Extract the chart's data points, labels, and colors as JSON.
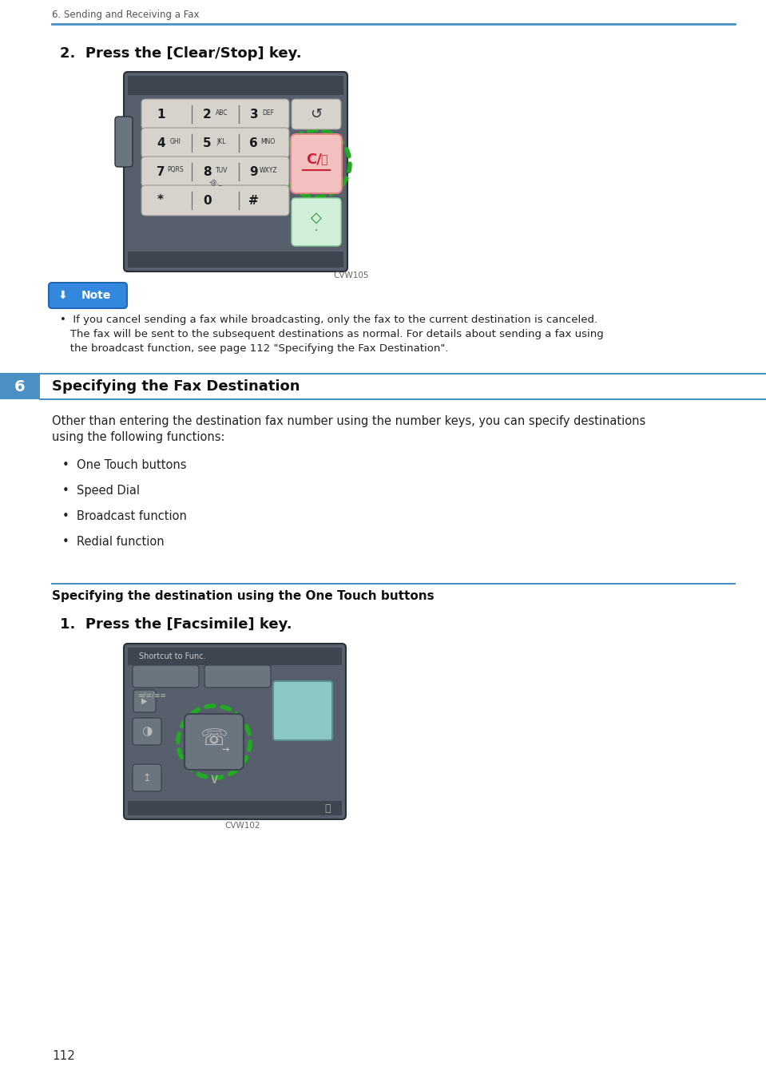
{
  "page_bg": "#ffffff",
  "header_text": "6. Sending and Receiving a Fax",
  "header_line_color": "#4a90c4",
  "header_text_color": "#555555",
  "step2_text": "2.  Press the [Clear/Stop] key.",
  "cvw105_label": "CVW105",
  "note_line1": "•  If you cancel sending a fax while broadcasting, only the fax to the current destination is canceled.",
  "note_line2": "   The fax will be sent to the subsequent destinations as normal. For details about sending a fax using",
  "note_line3": "   the broadcast function, see page 112 \"Specifying the Fax Destination\".",
  "section6_number": "6",
  "section6_bg": "#4a90c4",
  "section6_title": "Specifying the Fax Destination",
  "section6_line_color": "#4a90c4",
  "intro_line1": "Other than entering the destination fax number using the number keys, you can specify destinations",
  "intro_line2": "using the following functions:",
  "bullet_items": [
    "One Touch buttons",
    "Speed Dial",
    "Broadcast function",
    "Redial function"
  ],
  "subsection_title": "Specifying the destination using the One Touch buttons",
  "step1_text": "1.  Press the [Facsimile] key.",
  "cvw102_label": "CVW102",
  "page_number": "112",
  "device_bg": "#565f6b",
  "device_top_strip": "#3d4650",
  "device_bottom_strip": "#3d4650",
  "device_key_bg": "#d5d3cc",
  "device_key_border": "#999999",
  "device_red_key_bg": "#f2c0be",
  "device_red_key_border": "#e08888",
  "green_dash_color": "#22aa22",
  "green_btn_bg": "#d0eed8",
  "green_btn_border": "#88cc99",
  "green_btn_icon": "#228833",
  "note_badge_blue": "#3388dd",
  "note_badge_border": "#2266bb",
  "note_text_color": "#222222"
}
